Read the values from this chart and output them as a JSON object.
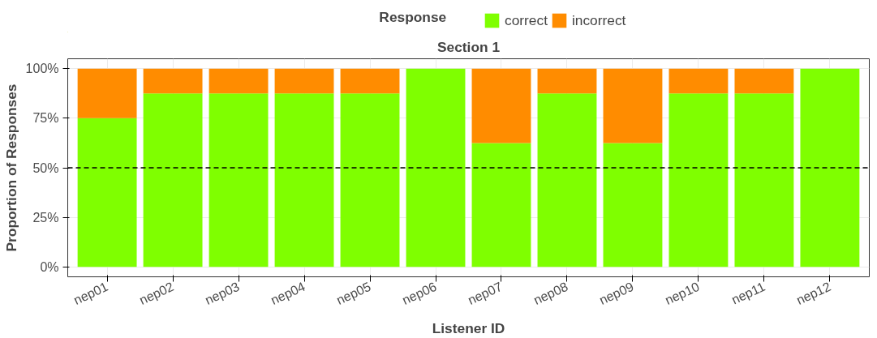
{
  "chart_data": {
    "type": "bar",
    "stacked": true,
    "subtitle": "Section 1",
    "xlabel": "Listener ID",
    "ylabel": "Proportion of Responses",
    "legend_title": "Response",
    "legend": "top",
    "categories": [
      "nep01",
      "nep02",
      "nep03",
      "nep04",
      "nep05",
      "nep06",
      "nep07",
      "nep08",
      "nep09",
      "nep10",
      "nep11",
      "nep12"
    ],
    "series": [
      {
        "name": "correct",
        "color": "#7fff00",
        "values": [
          75,
          87.5,
          87.5,
          87.5,
          87.5,
          100,
          62.5,
          87.5,
          62.5,
          87.5,
          87.5,
          100
        ]
      },
      {
        "name": "incorrect",
        "color": "#ff8c00",
        "values": [
          25,
          12.5,
          12.5,
          12.5,
          12.5,
          0,
          37.5,
          12.5,
          37.5,
          12.5,
          12.5,
          0
        ]
      }
    ],
    "ylim": [
      -5,
      105
    ],
    "yticks": [
      {
        "value": 0,
        "label": "0%"
      },
      {
        "value": 25,
        "label": "25%"
      },
      {
        "value": 50,
        "label": "50%"
      },
      {
        "value": 75,
        "label": "75%"
      },
      {
        "value": 100,
        "label": "100%"
      }
    ],
    "grid": true,
    "ref_lines": [
      {
        "axis": "y",
        "value": 50,
        "label": null,
        "color": "#000000",
        "line_style": "dashed"
      }
    ]
  }
}
